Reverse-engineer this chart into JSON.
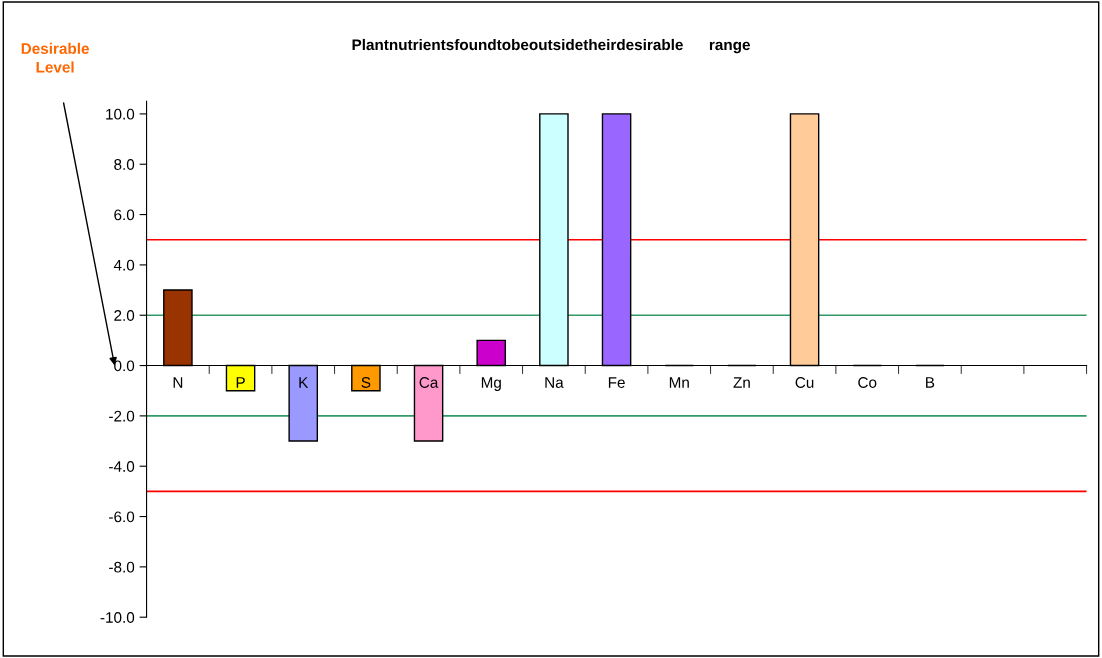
{
  "chart_data": {
    "type": "bar",
    "title": "Plantnutrientsfoundtobeoutsidetheirdesirable      range",
    "categories": [
      "N",
      "P",
      "K",
      "S",
      "Ca",
      "Mg",
      "Na",
      "Fe",
      "Mn",
      "Zn",
      "Cu",
      "Co",
      "B",
      null,
      null
    ],
    "values": [
      3,
      -1,
      -3,
      -1,
      -3,
      1,
      10,
      10,
      0,
      0,
      10,
      0,
      0,
      null,
      null
    ],
    "colors": [
      "#993300",
      "#ffff00",
      "#9999ff",
      "#ff9900",
      "#ff99cc",
      "#cc00cc",
      "#ccffff",
      "#9966ff",
      "#000000",
      "#000000",
      "#ffcc99",
      "#000000",
      "#000000",
      null,
      null
    ],
    "ylim": [
      -10,
      10.5
    ],
    "yticks": [
      {
        "value": -10,
        "label": "-10.0"
      },
      {
        "value": -8,
        "label": "-8.0"
      },
      {
        "value": -6,
        "label": "-6.0"
      },
      {
        "value": -4,
        "label": "-4.0"
      },
      {
        "value": -2,
        "label": "-2.0"
      },
      {
        "value": 0,
        "label": "0.0"
      },
      {
        "value": 2,
        "label": "2.0"
      },
      {
        "value": 4,
        "label": "4.0"
      },
      {
        "value": 6,
        "label": "6.0"
      },
      {
        "value": 8,
        "label": "8.0"
      },
      {
        "value": 10,
        "label": "10.0"
      }
    ],
    "ref_lines": [
      {
        "axis": "y",
        "value": 5,
        "label": null,
        "color": "#ff0000"
      },
      {
        "axis": "y",
        "value": 2,
        "label": null,
        "color": "#339966"
      },
      {
        "axis": "y",
        "value": -2,
        "label": null,
        "color": "#339966"
      },
      {
        "axis": "y",
        "value": -5,
        "label": null,
        "color": "#ff0000"
      }
    ],
    "annotations": [
      "Desirable Level"
    ],
    "grid": false,
    "legend": false
  }
}
